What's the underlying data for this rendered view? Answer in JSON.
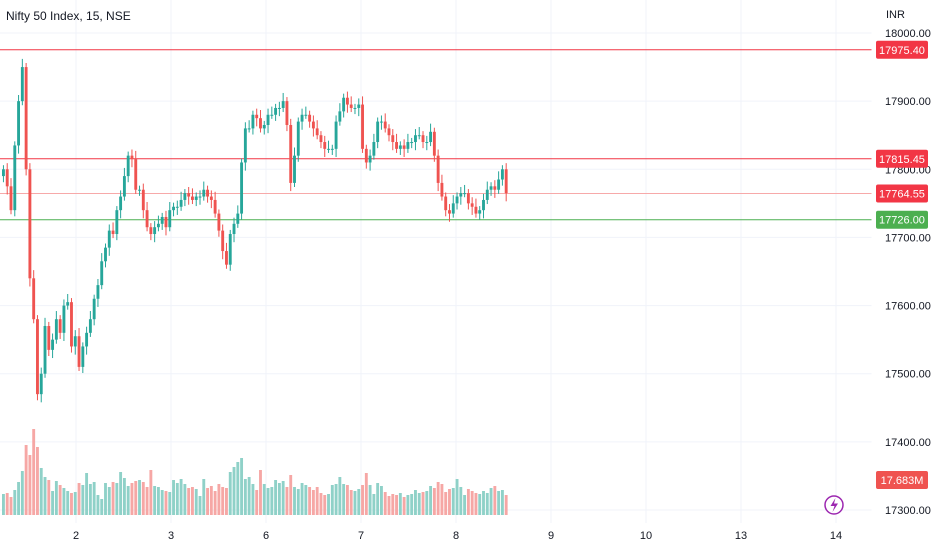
{
  "header": {
    "title": "Nifty 50 Index, 15, NSE",
    "currency": "INR"
  },
  "colors": {
    "up": "#26a69a",
    "down": "#ef5350",
    "up_vol": "#8fd1c8",
    "down_vol": "#f6a7a5",
    "resistance": "#f23645",
    "support": "#4caf50",
    "grid": "#f0f3fa"
  },
  "icons": {
    "alert": "lightning-icon"
  },
  "chart_data": {
    "type": "candlestick",
    "y_ticks": [
      "18000.00",
      "17900.00",
      "17800.00",
      "17700.00",
      "17600.00",
      "17500.00",
      "17400.00",
      "17300.00"
    ],
    "x_ticks": [
      "2",
      "3",
      "6",
      "7",
      "8",
      "9",
      "10",
      "13",
      "14"
    ],
    "price_range": [
      17285,
      18010
    ],
    "levels": [
      {
        "label": "17975.40",
        "value": 17975.4,
        "kind": "resistance"
      },
      {
        "label": "17815.45",
        "value": 17815.45,
        "kind": "resistance"
      },
      {
        "label": "17764.55",
        "value": 17764.55,
        "kind": "last"
      },
      {
        "label": "17726.00",
        "value": 17726.0,
        "kind": "support"
      }
    ],
    "volume_label": "17.683M",
    "candles_per_day": 25,
    "closes": [
      17800,
      17775,
      17740,
      17835,
      17900,
      17950,
      17800,
      17640,
      17580,
      17470,
      17500,
      17570,
      17535,
      17550,
      17580,
      17560,
      17600,
      17605,
      17540,
      17555,
      17510,
      17540,
      17560,
      17580,
      17610,
      17630,
      17665,
      17685,
      17710,
      17705,
      17740,
      17760,
      17790,
      17820,
      17815,
      17770,
      17770,
      17740,
      17715,
      17705,
      17715,
      17720,
      17730,
      17715,
      17740,
      17745,
      17745,
      17755,
      17765,
      17760,
      17755,
      17760,
      17760,
      17770,
      17760,
      17755,
      17735,
      17710,
      17680,
      17660,
      17705,
      17720,
      17735,
      17810,
      17860,
      17860,
      17880,
      17875,
      17860,
      17865,
      17880,
      17880,
      17890,
      17890,
      17900,
      17865,
      17780,
      17820,
      17870,
      17880,
      17880,
      17870,
      17860,
      17850,
      17840,
      17830,
      17830,
      17830,
      17870,
      17885,
      17905,
      17895,
      17890,
      17890,
      17895,
      17830,
      17810,
      17820,
      17840,
      17870,
      17870,
      17860,
      17850,
      17840,
      17830,
      17835,
      17830,
      17840,
      17840,
      17850,
      17850,
      17840,
      17840,
      17855,
      17820,
      17780,
      17760,
      17740,
      17735,
      17750,
      17760,
      17765,
      17765,
      17750,
      17745,
      17735,
      17740,
      17755,
      17770,
      17775,
      17770,
      17785,
      17800,
      17765
    ],
    "volumes": [
      21,
      22,
      18,
      25,
      33,
      44,
      70,
      60,
      86,
      68,
      47,
      38,
      35,
      24,
      34,
      30,
      27,
      24,
      22,
      23,
      32,
      30,
      42,
      31,
      33,
      20,
      16,
      32,
      28,
      33,
      32,
      43,
      37,
      29,
      32,
      34,
      35,
      33,
      28,
      45,
      29,
      28,
      25,
      24,
      23,
      35,
      32,
      36,
      31,
      27,
      28,
      26,
      19,
      36,
      27,
      29,
      24,
      31,
      28,
      27,
      43,
      48,
      53,
      57,
      36,
      38,
      31,
      25,
      45,
      31,
      27,
      28,
      35,
      32,
      34,
      28,
      40,
      28,
      26,
      32,
      30,
      28,
      25,
      28,
      22,
      20,
      21,
      30,
      31,
      38,
      31,
      30,
      25,
      24,
      26,
      30,
      42,
      30,
      21,
      32,
      29,
      23,
      19,
      21,
      20,
      22,
      18,
      20,
      21,
      25,
      22,
      23,
      24,
      29,
      27,
      33,
      31,
      23,
      26,
      27,
      36,
      28,
      20,
      26,
      24,
      22,
      21,
      24,
      22,
      27,
      29,
      24,
      25,
      20
    ]
  }
}
